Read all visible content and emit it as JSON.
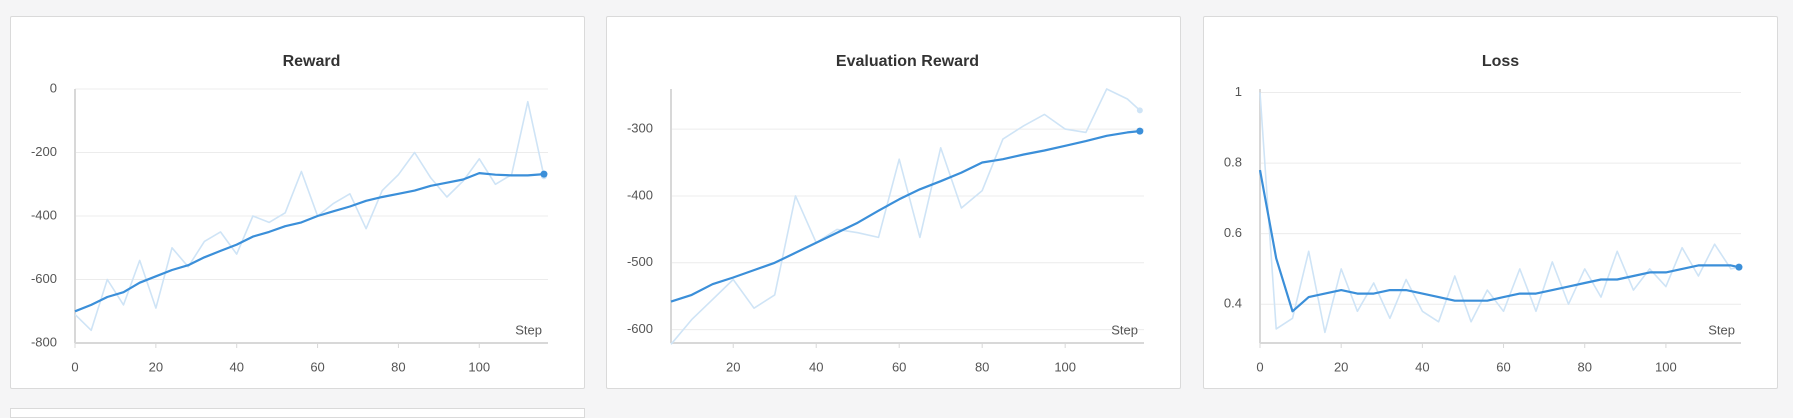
{
  "chart_data": [
    {
      "type": "line",
      "title": "Reward",
      "xlabel": "Step",
      "x": [
        0,
        4,
        8,
        12,
        16,
        20,
        24,
        28,
        32,
        36,
        40,
        44,
        48,
        52,
        56,
        60,
        64,
        68,
        72,
        76,
        80,
        84,
        88,
        92,
        96,
        100,
        104,
        108,
        112,
        116
      ],
      "series": [
        {
          "color": "#cfe4f6",
          "values": [
            -710,
            -760,
            -600,
            -680,
            -540,
            -690,
            -500,
            -560,
            -480,
            -450,
            -520,
            -400,
            -420,
            -390,
            -260,
            -400,
            -360,
            -330,
            -440,
            -320,
            -270,
            -200,
            -280,
            -340,
            -290,
            -220,
            -300,
            -270,
            -40,
            -275
          ]
        },
        {
          "color": "#3b8fd9",
          "values": [
            -700,
            -680,
            -655,
            -640,
            -610,
            -590,
            -570,
            -555,
            -530,
            -510,
            -490,
            -465,
            -450,
            -432,
            -420,
            -400,
            -385,
            -370,
            -352,
            -340,
            -330,
            -320,
            -305,
            -295,
            -285,
            -265,
            -270,
            -272,
            -272,
            -268
          ]
        }
      ],
      "xlim": [
        0,
        117
      ],
      "xticks": [
        0,
        20,
        40,
        60,
        80,
        100
      ],
      "ylim": [
        -800,
        0
      ],
      "yticks": [
        -800,
        -600,
        -400,
        -200,
        0
      ],
      "grid": true
    },
    {
      "type": "line",
      "title": "Evaluation Reward",
      "xlabel": "Step",
      "x": [
        5,
        10,
        15,
        20,
        25,
        30,
        35,
        40,
        45,
        50,
        55,
        60,
        65,
        70,
        75,
        80,
        85,
        90,
        95,
        100,
        105,
        110,
        115,
        118
      ],
      "series": [
        {
          "color": "#cfe4f6",
          "values": [
            -622,
            -585,
            -555,
            -525,
            -568,
            -548,
            -400,
            -470,
            -450,
            -455,
            -462,
            -345,
            -462,
            -328,
            -418,
            -392,
            -315,
            -295,
            -278,
            -300,
            -305,
            -240,
            -255,
            -272
          ]
        },
        {
          "color": "#3b8fd9",
          "values": [
            -558,
            -548,
            -532,
            -522,
            -511,
            -500,
            -485,
            -470,
            -455,
            -440,
            -422,
            -405,
            -390,
            -378,
            -365,
            -350,
            -345,
            -338,
            -332,
            -325,
            -318,
            -310,
            -305,
            -303
          ]
        }
      ],
      "xlim": [
        5,
        119
      ],
      "xticks": [
        20,
        40,
        60,
        80,
        100
      ],
      "ylim": [
        -620,
        -240
      ],
      "yticks": [
        -600,
        -500,
        -400,
        -300
      ],
      "grid": true
    },
    {
      "type": "line",
      "title": "Loss",
      "xlabel": "Step",
      "x": [
        0,
        4,
        8,
        12,
        16,
        20,
        24,
        28,
        32,
        36,
        40,
        44,
        48,
        52,
        56,
        60,
        64,
        68,
        72,
        76,
        80,
        84,
        88,
        92,
        96,
        100,
        104,
        108,
        112,
        116,
        118
      ],
      "series": [
        {
          "color": "#cfe4f6",
          "values": [
            1.0,
            0.33,
            0.36,
            0.55,
            0.32,
            0.5,
            0.38,
            0.46,
            0.36,
            0.47,
            0.38,
            0.35,
            0.48,
            0.35,
            0.44,
            0.38,
            0.5,
            0.38,
            0.52,
            0.4,
            0.5,
            0.42,
            0.55,
            0.44,
            0.5,
            0.45,
            0.56,
            0.48,
            0.57,
            0.5,
            0.505
          ]
        },
        {
          "color": "#3b8fd9",
          "values": [
            0.78,
            0.53,
            0.38,
            0.42,
            0.43,
            0.44,
            0.43,
            0.43,
            0.44,
            0.44,
            0.43,
            0.42,
            0.41,
            0.41,
            0.41,
            0.42,
            0.43,
            0.43,
            0.44,
            0.45,
            0.46,
            0.47,
            0.47,
            0.48,
            0.49,
            0.49,
            0.5,
            0.51,
            0.51,
            0.51,
            0.505
          ]
        }
      ],
      "xlim": [
        0,
        118.5
      ],
      "xticks": [
        0,
        20,
        40,
        60,
        80,
        100
      ],
      "ylim": [
        0.29,
        1.01
      ],
      "yticks": [
        0.4,
        0.6,
        0.8,
        1
      ],
      "grid": true
    }
  ]
}
